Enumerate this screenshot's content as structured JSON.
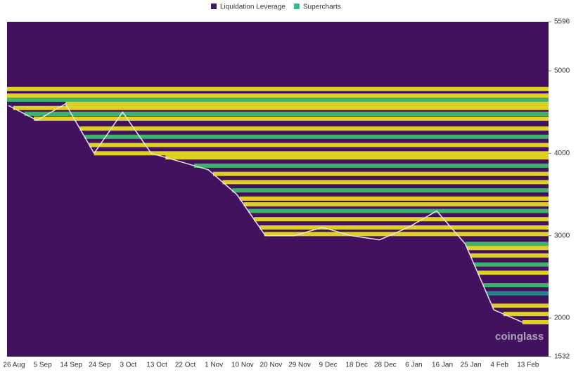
{
  "chart_data": {
    "type": "heatmap",
    "legend": [
      {
        "name": "Liquidation Leverage",
        "color": "#3b1a5a"
      },
      {
        "name": "Supercharts",
        "color": "#2ec08b"
      }
    ],
    "watermark": "coinglass",
    "background": "#42125e",
    "categories": [
      "26 Aug",
      "5 Sep",
      "14 Sep",
      "24 Sep",
      "3 Oct",
      "13 Oct",
      "22 Oct",
      "1 Nov",
      "10 Nov",
      "20 Nov",
      "29 Nov",
      "9 Dec",
      "18 Dec",
      "28 Dec",
      "6 Jan",
      "16 Jan",
      "25 Jan",
      "4 Feb",
      "13 Feb"
    ],
    "price": [
      4580,
      4400,
      4600,
      4000,
      4500,
      4000,
      3900,
      3800,
      3500,
      3000,
      3000,
      3100,
      3000,
      2950,
      3100,
      3300,
      2900,
      2100,
      1950
    ],
    "price_color": "#e6e6e6",
    "levels": [
      {
        "value": 4780,
        "color": "#f2e51e"
      },
      {
        "value": 4700,
        "color": "#f2e51e"
      },
      {
        "value": 4650,
        "color": "#3ec46d"
      },
      {
        "value": 4600,
        "color": "#f2e51e"
      },
      {
        "value": 4550,
        "color": "#f2e51e"
      },
      {
        "value": 4480,
        "color": "#3ec46d"
      },
      {
        "value": 4420,
        "color": "#f2e51e"
      },
      {
        "value": 4300,
        "color": "#f2e51e"
      },
      {
        "value": 4200,
        "color": "#3ec46d"
      },
      {
        "value": 4100,
        "color": "#f2e51e"
      },
      {
        "value": 4000,
        "color": "#f2e51e"
      },
      {
        "value": 3950,
        "color": "#f2e51e"
      },
      {
        "value": 3850,
        "color": "#3ec46d"
      },
      {
        "value": 3750,
        "color": "#f2e51e"
      },
      {
        "value": 3650,
        "color": "#f2e51e"
      },
      {
        "value": 3550,
        "color": "#3ec46d"
      },
      {
        "value": 3450,
        "color": "#f2e51e"
      },
      {
        "value": 3380,
        "color": "#f2e51e"
      },
      {
        "value": 3300,
        "color": "#3ec46d"
      },
      {
        "value": 3200,
        "color": "#f2e51e"
      },
      {
        "value": 3100,
        "color": "#f2e51e"
      },
      {
        "value": 3020,
        "color": "#f2e51e"
      },
      {
        "value": 2900,
        "color": "#3ec46d"
      },
      {
        "value": 2850,
        "color": "#f2e51e"
      },
      {
        "value": 2760,
        "color": "#f2e51e"
      },
      {
        "value": 2650,
        "color": "#3ec46d"
      },
      {
        "value": 2550,
        "color": "#f2e51e"
      },
      {
        "value": 2400,
        "color": "#3ec46d"
      },
      {
        "value": 2300,
        "color": "#21918c"
      },
      {
        "value": 2150,
        "color": "#f2e51e"
      },
      {
        "value": 2050,
        "color": "#f2e51e"
      },
      {
        "value": 1950,
        "color": "#f2e51e"
      }
    ],
    "ylim": [
      1532,
      5596
    ],
    "yticks": [
      5596,
      5000,
      4000,
      3000,
      2000,
      1532
    ]
  }
}
